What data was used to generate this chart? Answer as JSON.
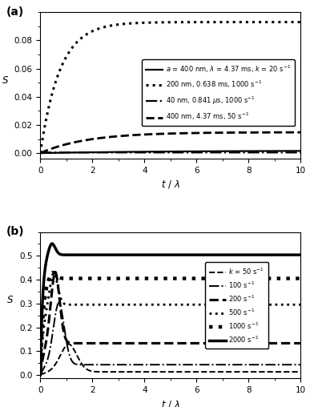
{
  "panel_a": {
    "S_inf": [
      0.0018,
      0.093,
      0.00042,
      0.0148
    ],
    "tau": [
      5.0,
      0.75,
      0.05,
      1.8
    ],
    "linestyles": [
      "solid",
      "dotted",
      "dashdot",
      "dashed"
    ],
    "linewidths": [
      1.6,
      2.2,
      1.6,
      2.0
    ],
    "labels": [
      "a = 400 nm, \\u03bb = 4.37 ms, k = 20 s\\u207b\\u00b9",
      "200 nm, 0.638 ms, 1000 s\\u207b\\u00b9",
      "40 nm, 0.841 \\u03bcs, 1000 s\\u207b\\u00b9",
      "400 nm, 4.37 ms, 50 s\\u207b\\u00b9"
    ],
    "xlabel": "t / \\u03bb",
    "ylabel": "S",
    "xlim": [
      0,
      10
    ],
    "ylim": [
      -0.004,
      0.1
    ],
    "yticks": [
      0.0,
      0.02,
      0.04,
      0.06,
      0.08
    ],
    "xticks": [
      0,
      2,
      4,
      6,
      8,
      10
    ],
    "panel_label": "(a)"
  },
  "panel_b": {
    "S_inf": [
      0.013,
      0.043,
      0.133,
      0.295,
      0.405,
      0.504
    ],
    "S_peak": [
      0.13,
      0.305,
      0.435,
      0.435,
      0.435,
      0.555
    ],
    "t_peak": [
      1.1,
      0.72,
      0.58,
      0.52,
      0.48,
      0.45
    ],
    "tau_rise": [
      0.3,
      0.2,
      0.15,
      0.13,
      0.11,
      0.09
    ],
    "tau_decay": [
      3.5,
      2.5,
      2.0,
      1.5,
      1.2,
      1.0
    ],
    "linestyles": [
      "dashed",
      "dashdot",
      "dashed",
      "dotted",
      "dotted",
      "solid"
    ],
    "linewidths": [
      1.4,
      1.4,
      2.2,
      2.0,
      3.2,
      2.5
    ],
    "labels": [
      "k = 50 s\\u207b\\u00b9",
      "100 s\\u207b\\u00b9",
      "200 s\\u207b\\u00b9",
      "500 s\\u207b\\u00b9",
      "1000 s\\u207b\\u00b9",
      "2000 s\\u207b\\u00b9"
    ],
    "xlabel": "t / \\u03bb",
    "ylabel": "S",
    "xlim": [
      0,
      10
    ],
    "ylim": [
      -0.015,
      0.6
    ],
    "yticks": [
      0.0,
      0.1,
      0.2,
      0.3,
      0.4,
      0.5
    ],
    "xticks": [
      0,
      2,
      4,
      6,
      8,
      10
    ],
    "panel_label": "(b)"
  },
  "background_color": "#ffffff",
  "font_size": 8.5
}
